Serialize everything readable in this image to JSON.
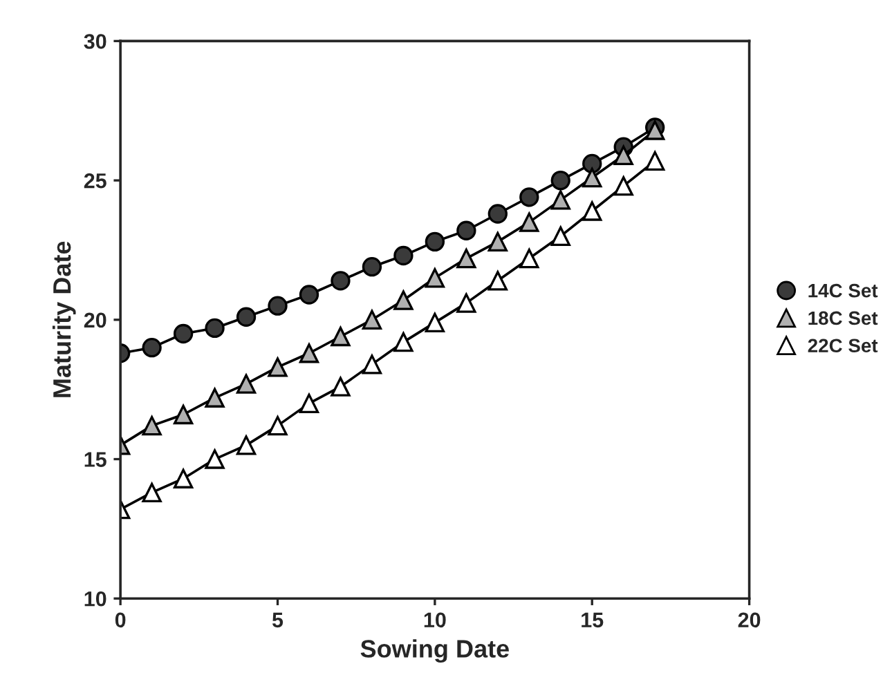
{
  "chart_data": {
    "type": "line",
    "xlabel": "Sowing Date",
    "ylabel": "Maturity Date",
    "x": [
      0,
      1,
      2,
      3,
      4,
      5,
      6,
      7,
      8,
      9,
      10,
      11,
      12,
      13,
      14,
      15,
      16,
      17
    ],
    "series": [
      {
        "name": "14C Set",
        "color": "#3a3a3a",
        "marker": "circle",
        "values": [
          18.8,
          19.0,
          19.5,
          19.7,
          20.1,
          20.5,
          20.9,
          21.4,
          21.9,
          22.3,
          22.8,
          23.2,
          23.8,
          24.4,
          25.0,
          25.6,
          26.2,
          26.9
        ]
      },
      {
        "name": "18C Set",
        "color": "#b0b0b0",
        "marker": "triangle",
        "values": [
          15.5,
          16.2,
          16.6,
          17.2,
          17.7,
          18.3,
          18.8,
          19.4,
          20.0,
          20.7,
          21.5,
          22.2,
          22.8,
          23.5,
          24.3,
          25.1,
          25.9,
          26.8
        ]
      },
      {
        "name": "22C Set",
        "color": "#ffffff",
        "marker": "triangle",
        "values": [
          13.2,
          13.8,
          14.3,
          15.0,
          15.5,
          16.2,
          17.0,
          17.6,
          18.4,
          19.2,
          19.9,
          20.6,
          21.4,
          22.2,
          23.0,
          23.9,
          24.8,
          25.7
        ]
      }
    ],
    "xlim": [
      0,
      20
    ],
    "xticks": [
      0,
      5,
      10,
      15,
      20
    ],
    "ylim": [
      10,
      30
    ],
    "yticks": [
      10,
      15,
      20,
      25,
      30
    ],
    "grid": false,
    "legend": "right",
    "line_style": "solid"
  }
}
